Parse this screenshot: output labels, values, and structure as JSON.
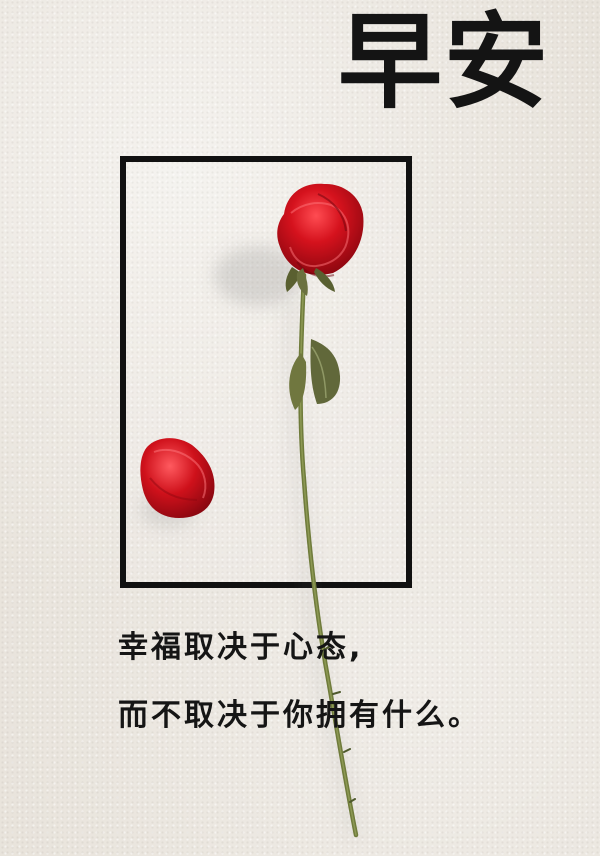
{
  "poster": {
    "title": "早安",
    "quote_line_1": "幸福取决于心态,",
    "quote_line_2": "而不取决于你拥有什么。"
  },
  "colors": {
    "background": "#e8e3db",
    "frame": "#111111",
    "rose": "#c6121f",
    "stem": "#6f7b3b",
    "text": "#151515"
  }
}
